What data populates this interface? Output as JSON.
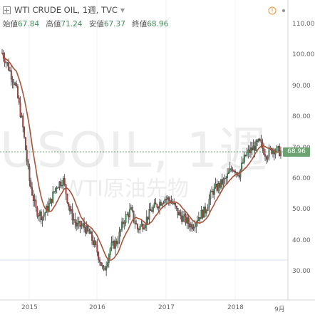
{
  "header": {
    "title": "WTI CRUDE OIL, 1週, TVC",
    "ohlc": [
      {
        "label": "始値",
        "value": "67.84"
      },
      {
        "label": "高値",
        "value": "71.24"
      },
      {
        "label": "安値",
        "value": "67.37"
      },
      {
        "label": "終値",
        "value": "68.96"
      }
    ]
  },
  "watermark": {
    "symbol": "USOIL, 1週",
    "description": "WTI原油先物"
  },
  "last_price": "68.96",
  "colors": {
    "up": "#3f8f55",
    "down": "#b0413e",
    "ma": "#a8543b",
    "last_line": "#6aa36f"
  },
  "chart_data": {
    "type": "candlestick",
    "title": "WTI CRUDE OIL, 1週, TVC",
    "interval": "1週",
    "ylim": [
      20,
      120
    ],
    "y_ticks": [
      "110.00",
      "100.00",
      "90.00",
      "80.00",
      "70.00",
      "60.00",
      "50.00",
      "40.00",
      "30.00"
    ],
    "x_ticks": [
      "2015",
      "2016",
      "2017",
      "2018",
      "9月"
    ],
    "last_close": 68.96,
    "series": [
      {
        "name": "close_path",
        "x": [
          2014.6,
          2014.7,
          2014.8,
          2014.9,
          2015.0,
          2015.1,
          2015.2,
          2015.3,
          2015.4,
          2015.5,
          2015.6,
          2015.7,
          2015.8,
          2015.9,
          2016.0,
          2016.1,
          2016.2,
          2016.3,
          2016.4,
          2016.5,
          2016.6,
          2016.7,
          2016.8,
          2016.9,
          2017.0,
          2017.1,
          2017.2,
          2017.3,
          2017.4,
          2017.5,
          2017.6,
          2017.7,
          2017.8,
          2017.9,
          2018.0,
          2018.1,
          2018.2,
          2018.3,
          2018.4,
          2018.5,
          2018.6,
          2018.7
        ],
        "values": [
          101,
          96,
          90,
          78,
          60,
          50,
          48,
          52,
          58,
          60,
          50,
          45,
          45,
          42,
          37,
          30,
          38,
          40,
          47,
          50,
          44,
          46,
          50,
          52,
          54,
          53,
          49,
          47,
          45,
          48,
          50,
          56,
          58,
          60,
          64,
          62,
          68,
          70,
          72,
          68,
          70,
          69
        ]
      }
    ]
  }
}
